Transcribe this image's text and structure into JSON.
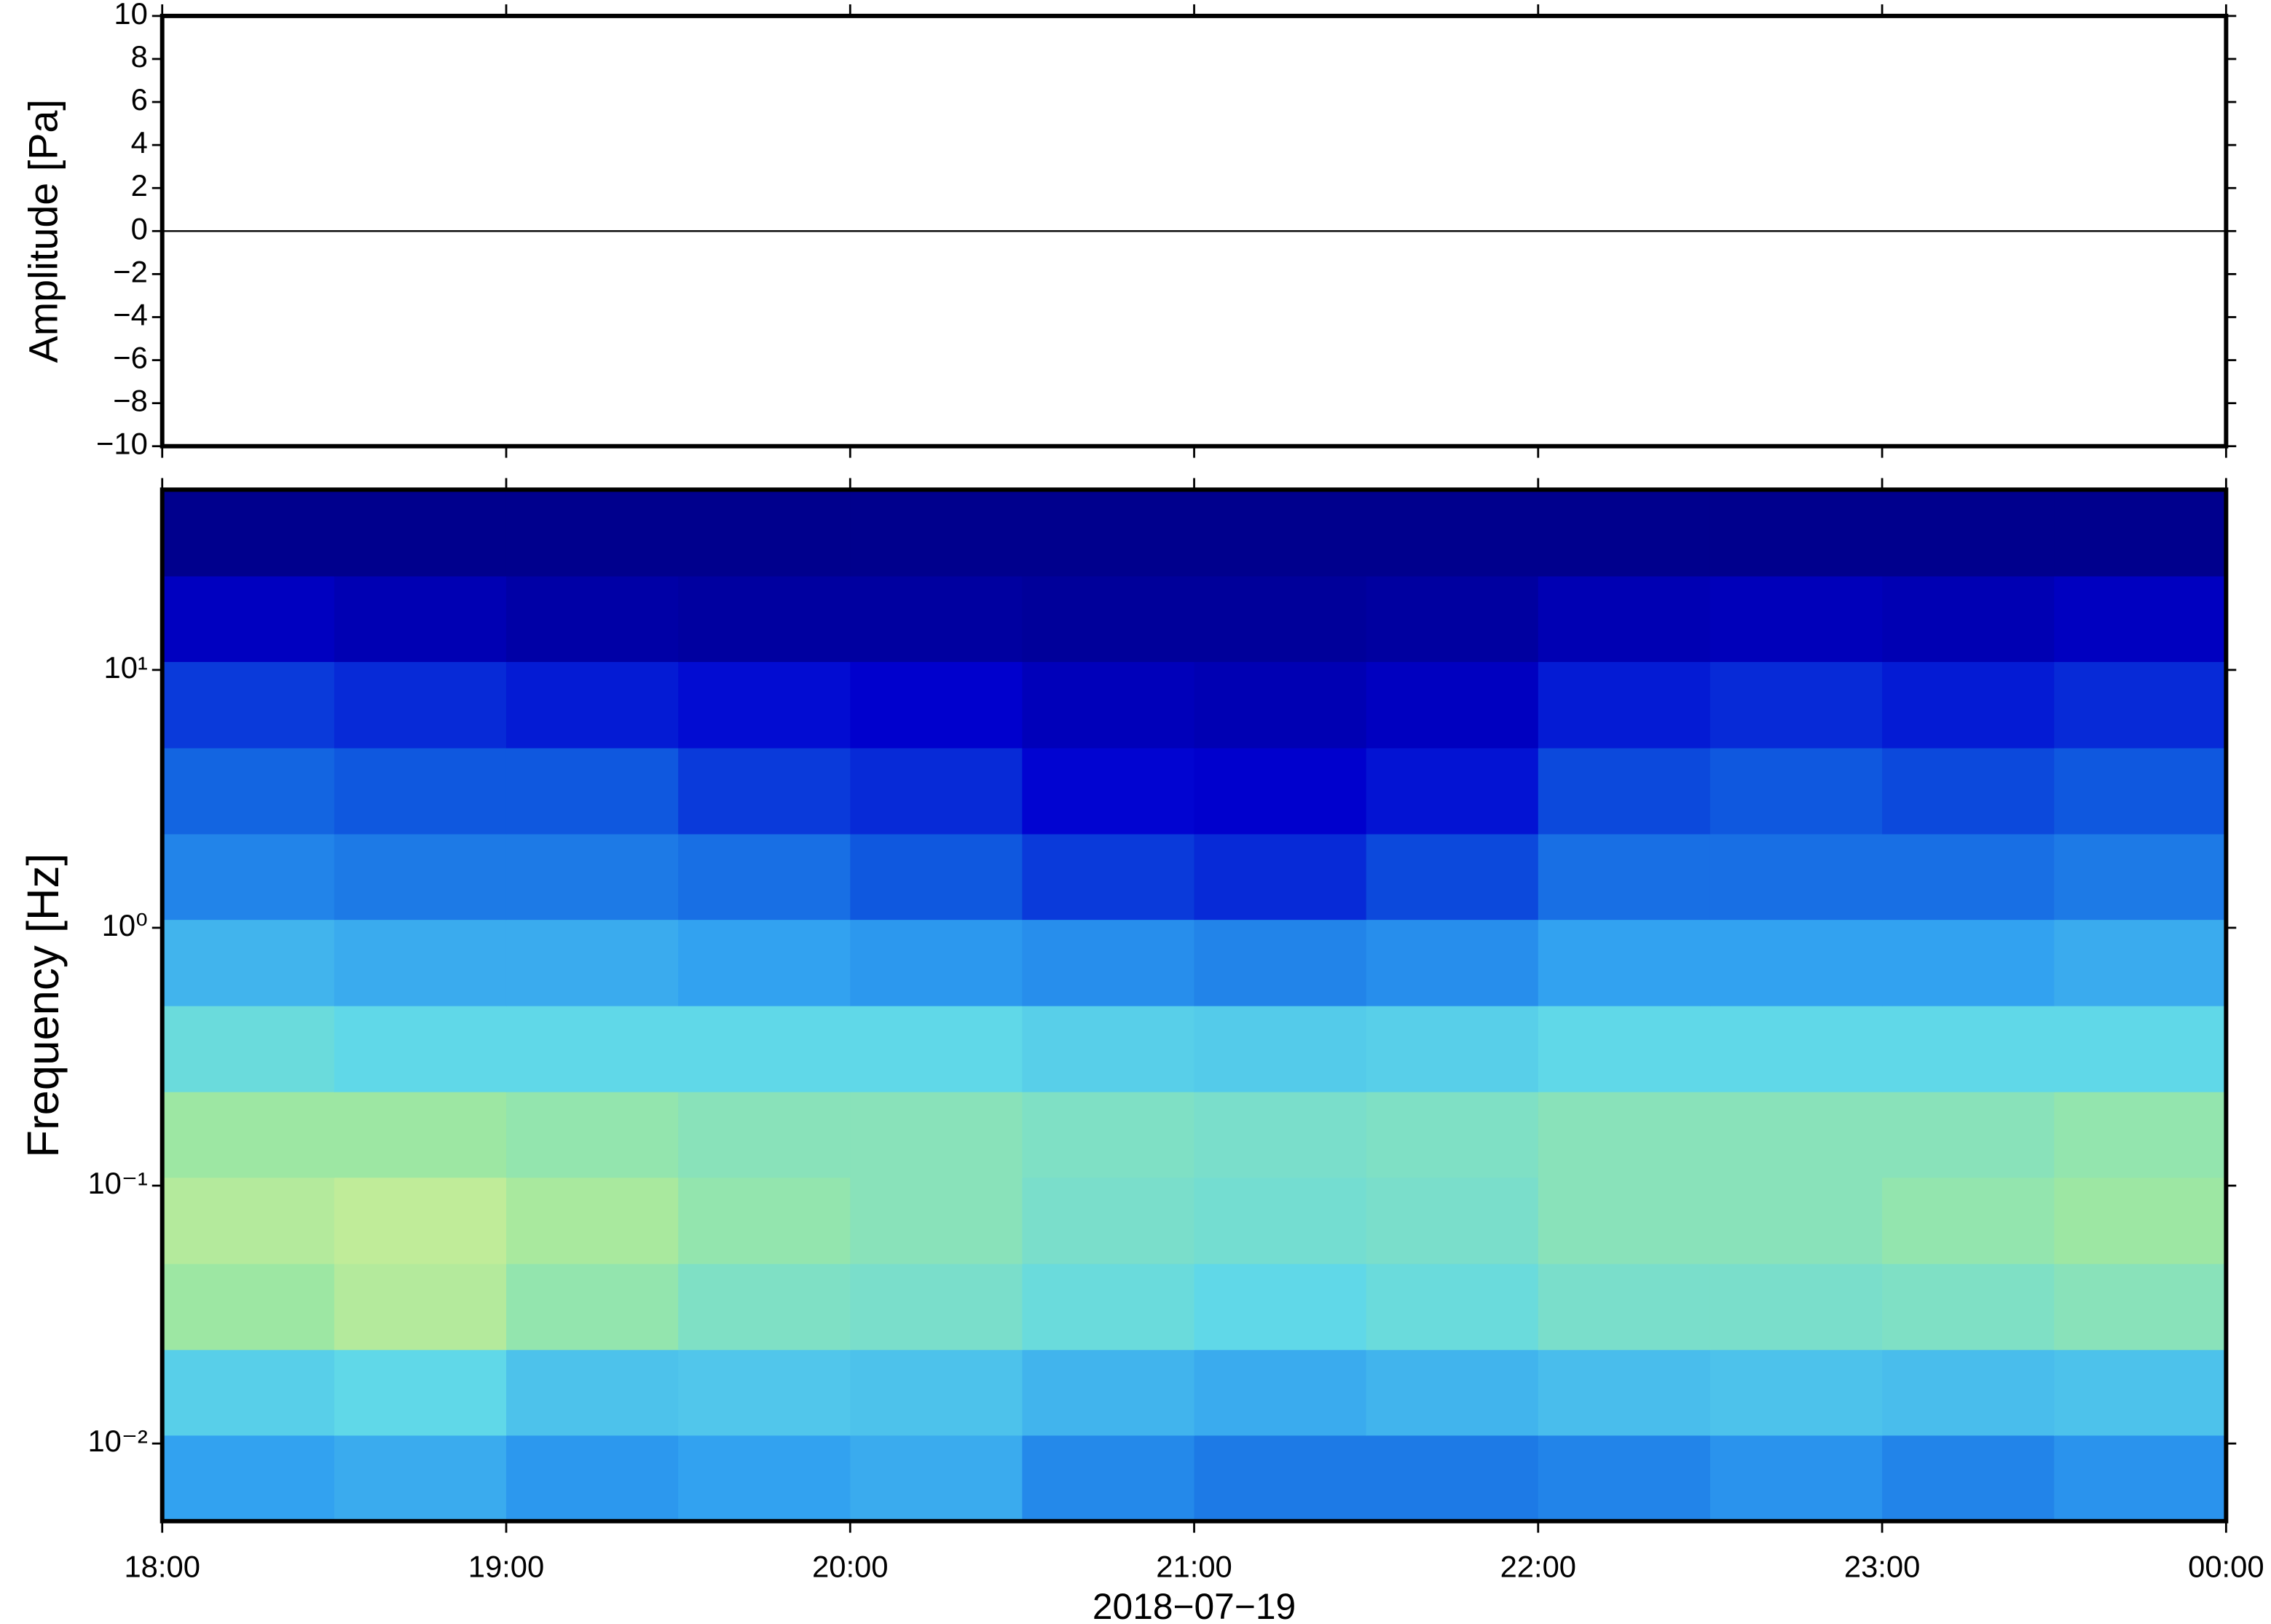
{
  "chart_data": [
    {
      "type": "line",
      "ylabel": "Amplitude [Pa]",
      "xlim": [
        18,
        24
      ],
      "xticks": [
        {
          "value": 18,
          "label": "18:00"
        },
        {
          "value": 19,
          "label": "19:00"
        },
        {
          "value": 20,
          "label": "20:00"
        },
        {
          "value": 21,
          "label": "21:00"
        },
        {
          "value": 22,
          "label": "22:00"
        },
        {
          "value": 23,
          "label": "23:00"
        },
        {
          "value": 24,
          "label": "00:00"
        }
      ],
      "ylim": [
        -10,
        10
      ],
      "yticks": [
        {
          "value": -10,
          "label": "−10"
        },
        {
          "value": -8,
          "label": "−8"
        },
        {
          "value": -6,
          "label": "−6"
        },
        {
          "value": -4,
          "label": "−4"
        },
        {
          "value": -2,
          "label": "−2"
        },
        0,
        2,
        4,
        6,
        8,
        10
      ],
      "x": [
        18,
        18.5,
        19,
        19.5,
        20,
        20.5,
        21,
        21.5,
        22,
        22.5,
        23,
        23.5,
        24
      ],
      "values": [
        0,
        0,
        0,
        0,
        0,
        0,
        0,
        0,
        0,
        0,
        0,
        0,
        0
      ],
      "color": "#000000"
    },
    {
      "type": "heatmap",
      "ylabel": "Frequency [Hz]",
      "xlabel": "2018−07−19",
      "log_y": true,
      "xlim": [
        18,
        24
      ],
      "xticks": [
        {
          "value": 18,
          "label": "18:00"
        },
        {
          "value": 19,
          "label": "19:00"
        },
        {
          "value": 20,
          "label": "20:00"
        },
        {
          "value": 21,
          "label": "21:00"
        },
        {
          "value": 22,
          "label": "22:00"
        },
        {
          "value": 23,
          "label": "23:00"
        },
        {
          "value": 24,
          "label": "00:00"
        }
      ],
      "ylim": [
        0.005,
        50
      ],
      "yticks": [
        {
          "value": 0.01,
          "label": "10⁻²"
        },
        {
          "value": 0.1,
          "label": "10⁻¹"
        },
        {
          "value": 1,
          "label": "10⁰"
        },
        {
          "value": 10,
          "label": "10¹"
        }
      ],
      "x_edges": [
        18,
        18.5,
        19,
        19.5,
        20,
        20.5,
        21,
        21.5,
        22,
        22.5,
        23,
        23.5,
        24
      ],
      "y_edges": [
        0.005,
        0.0108,
        0.0232,
        0.05,
        0.108,
        0.232,
        0.5,
        1.08,
        2.32,
        5,
        10.8,
        23.2,
        50
      ],
      "colormap": [
        "#000080",
        "#0000d0",
        "#1060e0",
        "#30a0f0",
        "#60d8e8",
        "#a0e8a0",
        "#e8f090",
        "#f8c080",
        "#e07050"
      ],
      "values": [
        [
          0.38,
          0.4,
          0.36,
          0.38,
          0.4,
          0.33,
          0.3,
          0.3,
          0.32,
          0.35,
          0.32,
          0.35
        ],
        [
          0.48,
          0.5,
          0.45,
          0.46,
          0.45,
          0.42,
          0.4,
          0.42,
          0.44,
          0.45,
          0.44,
          0.45
        ],
        [
          0.62,
          0.66,
          0.6,
          0.56,
          0.55,
          0.52,
          0.5,
          0.52,
          0.55,
          0.55,
          0.56,
          0.58
        ],
        [
          0.66,
          0.68,
          0.64,
          0.6,
          0.58,
          0.55,
          0.54,
          0.55,
          0.58,
          0.58,
          0.6,
          0.62
        ],
        [
          0.62,
          0.62,
          0.6,
          0.58,
          0.58,
          0.56,
          0.55,
          0.56,
          0.58,
          0.58,
          0.58,
          0.6
        ],
        [
          0.52,
          0.5,
          0.5,
          0.5,
          0.5,
          0.48,
          0.47,
          0.48,
          0.5,
          0.5,
          0.5,
          0.5
        ],
        [
          0.42,
          0.4,
          0.4,
          0.38,
          0.36,
          0.34,
          0.32,
          0.34,
          0.38,
          0.38,
          0.38,
          0.4
        ],
        [
          0.32,
          0.3,
          0.3,
          0.28,
          0.24,
          0.2,
          0.18,
          0.22,
          0.28,
          0.28,
          0.28,
          0.3
        ],
        [
          0.26,
          0.24,
          0.24,
          0.2,
          0.18,
          0.13,
          0.12,
          0.15,
          0.22,
          0.24,
          0.22,
          0.24
        ],
        [
          0.2,
          0.18,
          0.16,
          0.14,
          0.12,
          0.09,
          0.08,
          0.1,
          0.16,
          0.18,
          0.16,
          0.18
        ],
        [
          0.1,
          0.08,
          0.06,
          0.05,
          0.05,
          0.04,
          0.04,
          0.05,
          0.08,
          0.09,
          0.08,
          0.1
        ],
        [
          0.02,
          0.02,
          0.02,
          0.02,
          0.02,
          0.02,
          0.02,
          0.02,
          0.02,
          0.02,
          0.02,
          0.02
        ]
      ]
    }
  ]
}
